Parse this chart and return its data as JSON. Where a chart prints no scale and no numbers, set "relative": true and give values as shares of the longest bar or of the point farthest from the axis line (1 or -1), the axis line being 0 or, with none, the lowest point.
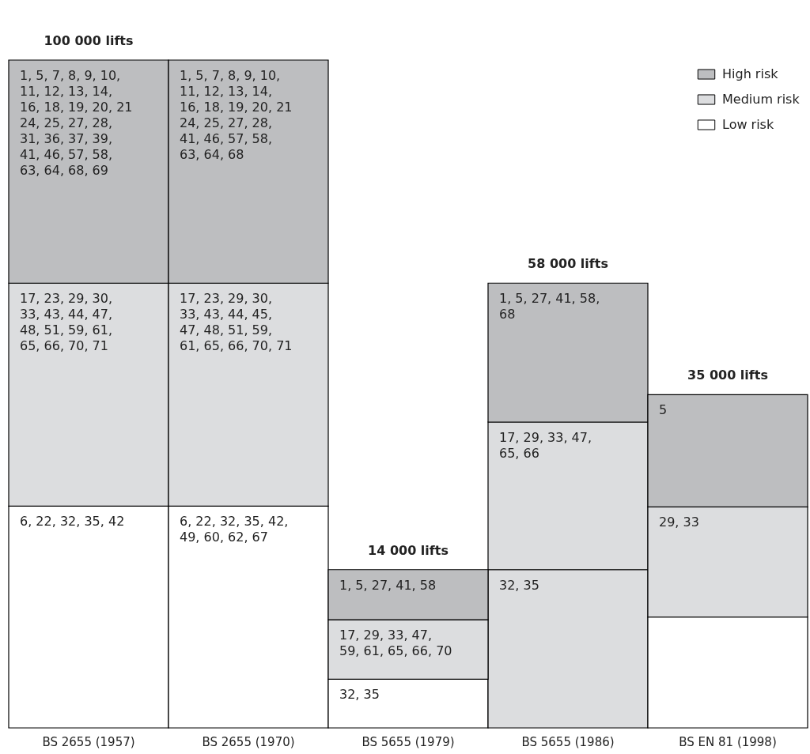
{
  "chart_data": {
    "type": "bar",
    "stacked": true,
    "relative": true,
    "legend": "top right",
    "categories": [
      "BS 2655 (1957)",
      "BS 2655 (1970)",
      "BS 5655 (1979)",
      "BS 5655 (1986)",
      "BS EN 81 (1998)"
    ],
    "series": [
      {
        "name": "Low risk",
        "color": "#ffffff",
        "colors": [
          "#ffffff",
          "#ffffff",
          "#ffffff",
          "#dcdddf",
          "#ffffff"
        ],
        "values": [
          0.332,
          0.332,
          0.073,
          0.237,
          0.166
        ]
      },
      {
        "name": "Medium risk",
        "color": "#dcdddf",
        "values": [
          0.334,
          0.334,
          0.089,
          0.221,
          0.165
        ]
      },
      {
        "name": "High risk",
        "color": "#bdbec0",
        "values": [
          0.334,
          0.334,
          0.075,
          0.208,
          0.168
        ]
      }
    ],
    "annotations": [
      {
        "text": "100 000 lifts",
        "x": "BS 2655 (1957)",
        "y": 1
      },
      {
        "text": "14 000 lifts",
        "x": "BS 5655 (1979)",
        "y": 0.237
      },
      {
        "text": "58 000 lifts",
        "x": "BS 5655 (1986)",
        "y": 0.666
      },
      {
        "text": "35 000 lifts",
        "x": "BS EN 81 (1998)",
        "y": 0.499
      },
      {
        "text": "6, 22, 32, 35, 42",
        "x": "BS 2655 (1957)",
        "y": 0.332
      },
      {
        "text": "6, 22, 32, 35, 42, 49, 60, 62, 67",
        "x": "BS 2655 (1970)",
        "y": 0.332
      },
      {
        "text": "32, 35",
        "x": "BS 5655 (1979)",
        "y": 0.073
      },
      {
        "text": "32, 35",
        "x": "BS 5655 (1986)",
        "y": 0.237
      },
      {
        "text": "17, 23, 29, 30, 33, 43, 44, 47, 48, 51, 59, 61, 65, 66, 70, 71",
        "x": "BS 2655 (1957)",
        "y": 0.666
      },
      {
        "text": "17, 23, 29, 30, 33, 43, 44, 45, 47, 48, 51, 59, 61, 65, 66, 70, 71",
        "x": "BS 2655 (1970)",
        "y": 0.666
      },
      {
        "text": "17, 29, 33, 47, 59, 61, 65, 66, 70",
        "x": "BS 5655 (1979)",
        "y": 0.162
      },
      {
        "text": "17, 29, 33, 47, 65, 66",
        "x": "BS 5655 (1986)",
        "y": 0.458
      },
      {
        "text": "29, 33",
        "x": "BS EN 81 (1998)",
        "y": 0.331
      },
      {
        "text": "1, 5, 7, 8, 9, 10, 11, 12, 13, 14, 16, 18, 19, 20, 21 24, 25, 27, 28, 31, 36, 37, 39, 41, 46, 57, 58, 63, 64, 68, 69",
        "x": "BS 2655 (1957)",
        "y": 1
      },
      {
        "text": "1, 5, 7, 8, 9, 10, 11, 12, 13, 14, 16, 18, 19, 20, 21 24, 25, 27, 28, 41, 46, 57, 58, 63, 64, 68",
        "x": "BS 2655 (1970)",
        "y": 1
      },
      {
        "text": "1, 5, 27, 41, 58",
        "x": "BS 5655 (1979)",
        "y": 0.237
      },
      {
        "text": "1, 5, 27, 41, 58, 68",
        "x": "BS 5655 (1986)",
        "y": 0.666
      },
      "5"
    ]
  }
}
